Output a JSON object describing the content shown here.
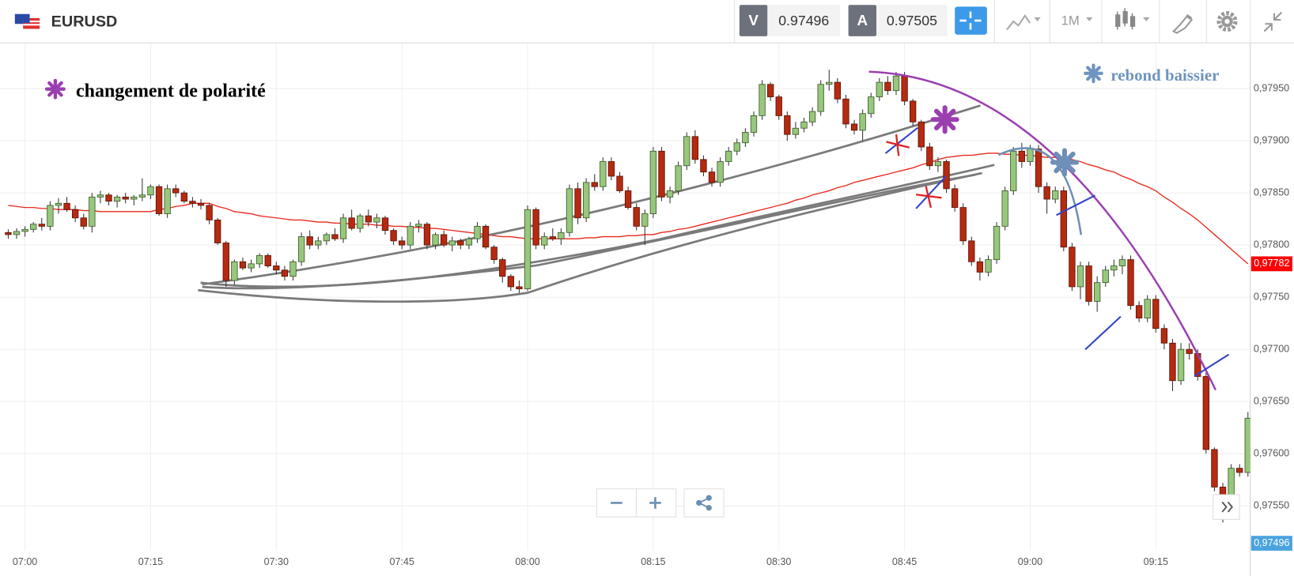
{
  "toolbar": {
    "symbol": "EURUSD",
    "sell_label": "V",
    "sell_price": 0.97496,
    "buy_label": "A",
    "buy_price": 0.97505,
    "timeframe": "1M"
  },
  "chart_data": {
    "type": "candlestick",
    "categories": [
      null,
      null,
      "07:00",
      null,
      null,
      null,
      null,
      null,
      null,
      null,
      null,
      null,
      null,
      null,
      null,
      null,
      null,
      "07:15",
      null,
      null,
      null,
      null,
      null,
      null,
      null,
      null,
      null,
      null,
      null,
      null,
      null,
      null,
      "07:30",
      null,
      null,
      null,
      null,
      null,
      null,
      null,
      null,
      null,
      null,
      null,
      null,
      null,
      null,
      "07:45",
      null,
      null,
      null,
      null,
      null,
      null,
      null,
      null,
      null,
      null,
      null,
      null,
      null,
      null,
      "08:00",
      null,
      null,
      null,
      null,
      null,
      null,
      null,
      null,
      null,
      null,
      null,
      null,
      null,
      null,
      "08:15",
      null,
      null,
      null,
      null,
      null,
      null,
      null,
      null,
      null,
      null,
      null,
      null,
      null,
      null,
      "08:30",
      null,
      null,
      null,
      null,
      null,
      null,
      null,
      null,
      null,
      null,
      null,
      null,
      null,
      null,
      "08:45",
      null,
      null,
      null,
      null,
      null,
      null,
      null,
      null,
      null,
      null,
      null,
      null,
      null,
      null,
      "09:00",
      null,
      null,
      null,
      null,
      null,
      null,
      null,
      null,
      null,
      null,
      null,
      null,
      null,
      null,
      "09:15",
      null,
      null,
      null,
      null,
      null,
      null,
      null,
      null,
      null,
      null,
      null
    ],
    "open": [
      0.97812,
      0.9781,
      0.97813,
      0.97815,
      0.9782,
      0.97818,
      0.97838,
      0.9784,
      0.97834,
      0.97826,
      0.97818,
      0.97846,
      0.97848,
      0.97842,
      0.97846,
      0.97844,
      0.97846,
      0.97848,
      0.97856,
      0.9783,
      0.97854,
      0.9785,
      0.97842,
      0.9784,
      0.97838,
      0.97824,
      0.97802,
      0.97766,
      0.97784,
      0.97778,
      0.97782,
      0.9779,
      0.9778,
      0.97776,
      0.9777,
      0.97784,
      0.97808,
      0.978,
      0.97804,
      0.9781,
      0.97806,
      0.97826,
      0.97816,
      0.97828,
      0.97822,
      0.97826,
      0.97814,
      0.97804,
      0.978,
      0.97818,
      0.9782,
      0.978,
      0.9781,
      0.978,
      0.97804,
      0.978,
      0.97806,
      0.97818,
      0.97798,
      0.97786,
      0.9777,
      0.9776,
      0.97758,
      0.97834,
      0.978,
      0.97808,
      0.97806,
      0.97812,
      0.97854,
      0.97826,
      0.9786,
      0.97856,
      0.9788,
      0.97866,
      0.97852,
      0.97836,
      0.97818,
      0.9783,
      0.9789,
      0.97846,
      0.97852,
      0.97876,
      0.97904,
      0.97882,
      0.9787,
      0.9786,
      0.9788,
      0.9789,
      0.97898,
      0.97908,
      0.97924,
      0.97954,
      0.97942,
      0.97924,
      0.97906,
      0.97912,
      0.97918,
      0.97928,
      0.97954,
      0.97956,
      0.9794,
      0.97916,
      0.9791,
      0.97926,
      0.97942,
      0.97956,
      0.97948,
      0.97962,
      0.97938,
      0.97918,
      0.97894,
      0.97876,
      0.9788,
      0.97854,
      0.97836,
      0.97804,
      0.97784,
      0.97774,
      0.97786,
      0.97818,
      0.97852,
      0.9789,
      0.9788,
      0.97892,
      0.97856,
      0.97844,
      0.97852,
      0.97798,
      0.9776,
      0.9778,
      0.97746,
      0.97764,
      0.97776,
      0.9778,
      0.97786,
      0.97742,
      0.9773,
      0.97748,
      0.9772,
      0.97706,
      0.9767,
      0.977,
      0.97696,
      0.97674,
      0.97604,
      0.97568,
      0.97556,
      0.97586,
      0.97582
    ],
    "high": [
      0.97815,
      0.97816,
      0.97818,
      0.97822,
      0.97826,
      0.97842,
      0.97845,
      0.97846,
      0.97838,
      0.9783,
      0.9785,
      0.97852,
      0.9785,
      0.97848,
      0.9785,
      0.97848,
      0.97864,
      0.97858,
      0.97858,
      0.97858,
      0.97858,
      0.97852,
      0.97846,
      0.97844,
      0.9784,
      0.97826,
      0.97804,
      0.97786,
      0.97788,
      0.97786,
      0.97792,
      0.97792,
      0.97784,
      0.9778,
      0.97786,
      0.97812,
      0.97814,
      0.97808,
      0.97812,
      0.97816,
      0.9783,
      0.97834,
      0.9783,
      0.97834,
      0.9783,
      0.97828,
      0.97816,
      0.97808,
      0.97822,
      0.97824,
      0.97822,
      0.97812,
      0.97814,
      0.97808,
      0.97806,
      0.97808,
      0.97822,
      0.9782,
      0.978,
      0.97788,
      0.97772,
      0.97766,
      0.97838,
      0.97836,
      0.97812,
      0.97816,
      0.97816,
      0.97858,
      0.9786,
      0.97864,
      0.97868,
      0.97884,
      0.97884,
      0.9787,
      0.97856,
      0.9784,
      0.97834,
      0.97894,
      0.97894,
      0.97856,
      0.9788,
      0.97908,
      0.9791,
      0.97886,
      0.97874,
      0.97884,
      0.97894,
      0.97902,
      0.97912,
      0.97928,
      0.97958,
      0.97956,
      0.97944,
      0.97928,
      0.97918,
      0.97922,
      0.97932,
      0.97958,
      0.97968,
      0.9796,
      0.97944,
      0.9792,
      0.9793,
      0.97946,
      0.9796,
      0.97962,
      0.97966,
      0.97966,
      0.9794,
      0.9792,
      0.97898,
      0.97884,
      0.97882,
      0.97858,
      0.9784,
      0.97808,
      0.97788,
      0.9779,
      0.97822,
      0.97856,
      0.97894,
      0.97898,
      0.97896,
      0.97896,
      0.9786,
      0.97856,
      0.97856,
      0.97802,
      0.97784,
      0.97784,
      0.9777,
      0.9778,
      0.97786,
      0.9779,
      0.9779,
      0.97746,
      0.97752,
      0.97752,
      0.97724,
      0.9771,
      0.97706,
      0.97706,
      0.977,
      0.97678,
      0.97606,
      0.97572,
      0.9759,
      0.9759,
      0.9764
    ],
    "low": [
      0.97806,
      0.97806,
      0.97808,
      0.97812,
      0.97814,
      0.97814,
      0.9783,
      0.97832,
      0.97822,
      0.97815,
      0.97812,
      0.9784,
      0.97838,
      0.97836,
      0.9784,
      0.97838,
      0.97842,
      0.97844,
      0.97828,
      0.97826,
      0.97846,
      0.9784,
      0.97836,
      0.97834,
      0.9782,
      0.978,
      0.9776,
      0.97762,
      0.97776,
      0.97774,
      0.97778,
      0.97778,
      0.97772,
      0.97766,
      0.97766,
      0.9778,
      0.97796,
      0.97796,
      0.978,
      0.97804,
      0.97802,
      0.97814,
      0.97812,
      0.97818,
      0.97816,
      0.9781,
      0.978,
      0.97796,
      0.97796,
      0.97812,
      0.97796,
      0.97796,
      0.97798,
      0.97794,
      0.97796,
      0.97796,
      0.97802,
      0.97796,
      0.97782,
      0.97764,
      0.97756,
      0.97754,
      0.97756,
      0.97796,
      0.97796,
      0.97804,
      0.978,
      0.97808,
      0.9782,
      0.97822,
      0.97852,
      0.97852,
      0.97862,
      0.9785,
      0.97834,
      0.97814,
      0.978,
      0.97826,
      0.97842,
      0.9784,
      0.97848,
      0.97872,
      0.97878,
      0.97866,
      0.97856,
      0.97856,
      0.97876,
      0.97886,
      0.97894,
      0.97904,
      0.9792,
      0.97938,
      0.9792,
      0.979,
      0.97902,
      0.97908,
      0.97914,
      0.97924,
      0.97948,
      0.97936,
      0.97912,
      0.97906,
      0.979,
      0.97922,
      0.97938,
      0.97944,
      0.97944,
      0.97934,
      0.97914,
      0.9789,
      0.97872,
      0.9787,
      0.9785,
      0.97832,
      0.978,
      0.9778,
      0.97766,
      0.9777,
      0.97782,
      0.97814,
      0.97848,
      0.97874,
      0.97876,
      0.9785,
      0.9783,
      0.9784,
      0.97794,
      0.97756,
      0.97748,
      0.97742,
      0.97736,
      0.9776,
      0.9777,
      0.97772,
      0.97738,
      0.97726,
      0.97726,
      0.97716,
      0.977,
      0.9766,
      0.97666,
      0.9769,
      0.9767,
      0.976,
      0.97564,
      0.97534,
      0.97552,
      0.97578,
      0.97578
    ],
    "close": [
      0.9781,
      0.97813,
      0.97815,
      0.9782,
      0.97818,
      0.97838,
      0.9784,
      0.97834,
      0.97826,
      0.97818,
      0.97846,
      0.97848,
      0.97842,
      0.97846,
      0.97844,
      0.97846,
      0.97848,
      0.97856,
      0.9783,
      0.97854,
      0.9785,
      0.97842,
      0.9784,
      0.97838,
      0.97824,
      0.97802,
      0.97766,
      0.97784,
      0.97778,
      0.97782,
      0.9779,
      0.9778,
      0.97776,
      0.9777,
      0.97784,
      0.97808,
      0.978,
      0.97804,
      0.9781,
      0.97806,
      0.97826,
      0.97816,
      0.97828,
      0.97822,
      0.97826,
      0.97814,
      0.97804,
      0.978,
      0.97818,
      0.9782,
      0.978,
      0.9781,
      0.978,
      0.97804,
      0.978,
      0.97806,
      0.97818,
      0.97798,
      0.97786,
      0.9777,
      0.9776,
      0.97758,
      0.97834,
      0.978,
      0.97808,
      0.97806,
      0.97812,
      0.97854,
      0.97826,
      0.9786,
      0.97856,
      0.9788,
      0.97866,
      0.97852,
      0.97836,
      0.97818,
      0.9783,
      0.9789,
      0.97846,
      0.97852,
      0.97876,
      0.97904,
      0.97882,
      0.9787,
      0.9786,
      0.9788,
      0.9789,
      0.97898,
      0.97908,
      0.97924,
      0.97954,
      0.97942,
      0.97924,
      0.97906,
      0.97912,
      0.97918,
      0.97928,
      0.97954,
      0.97956,
      0.9794,
      0.97916,
      0.9791,
      0.97926,
      0.97942,
      0.97956,
      0.97948,
      0.97962,
      0.97938,
      0.97918,
      0.97894,
      0.97876,
      0.9788,
      0.97854,
      0.97836,
      0.97804,
      0.97784,
      0.97774,
      0.97786,
      0.97818,
      0.97852,
      0.9789,
      0.9788,
      0.97892,
      0.97856,
      0.97844,
      0.97852,
      0.97798,
      0.9776,
      0.9778,
      0.97746,
      0.97764,
      0.97776,
      0.9778,
      0.97786,
      0.97742,
      0.9773,
      0.97748,
      0.9772,
      0.97706,
      0.9767,
      0.977,
      0.97696,
      0.97674,
      0.97604,
      0.97568,
      0.97556,
      0.97586,
      0.97582,
      0.97634
    ],
    "up_color": "#97c77c",
    "down_color": "#b52a10",
    "ylim": [
      0.97507,
      0.97993
    ],
    "yticks": [
      {
        "value": 0.9755,
        "label": "0,97550"
      },
      {
        "value": 0.976,
        "label": "0,97600"
      },
      {
        "value": 0.9765,
        "label": "0,97650"
      },
      {
        "value": 0.977,
        "label": "0,97700"
      },
      {
        "value": 0.9775,
        "label": "0,97750"
      },
      {
        "value": 0.978,
        "label": "0,97800"
      },
      {
        "value": 0.9785,
        "label": "0,97850"
      },
      {
        "value": 0.979,
        "label": "0,97900"
      },
      {
        "value": 0.9795,
        "label": "0,97950"
      }
    ],
    "grid": true,
    "moving_average": {
      "color": "#e8281e",
      "values": [
        0.97838,
        0.97837,
        0.97836,
        0.97836,
        0.97835,
        0.97835,
        0.97834,
        0.97834,
        0.97834,
        0.97833,
        0.97833,
        0.97832,
        0.97832,
        0.97832,
        0.97832,
        0.97832,
        0.97832,
        0.97832,
        0.97834,
        0.97835,
        0.97837,
        0.97838,
        0.9784,
        0.9784,
        0.9784,
        0.97837,
        0.97835,
        0.97832,
        0.97831,
        0.9783,
        0.97828,
        0.97827,
        0.97826,
        0.97825,
        0.97824,
        0.97824,
        0.97823,
        0.97822,
        0.97822,
        0.97821,
        0.97821,
        0.9782,
        0.9782,
        0.9782,
        0.97819,
        0.97819,
        0.97818,
        0.97818,
        0.97817,
        0.97817,
        0.97816,
        0.97816,
        0.97815,
        0.97814,
        0.97813,
        0.97812,
        0.97811,
        0.9781,
        0.97809,
        0.97808,
        0.97808,
        0.97807,
        0.97806,
        0.97806,
        0.97806,
        0.97806,
        0.97806,
        0.97806,
        0.97806,
        0.97807,
        0.97807,
        0.97808,
        0.97808,
        0.97808,
        0.97809,
        0.97809,
        0.9781,
        0.9781,
        0.97812,
        0.97813,
        0.97815,
        0.97816,
        0.97818,
        0.9782,
        0.97822,
        0.97824,
        0.97826,
        0.97828,
        0.9783,
        0.97832,
        0.97834,
        0.97836,
        0.97838,
        0.9784,
        0.97843,
        0.97845,
        0.97848,
        0.9785,
        0.97852,
        0.97855,
        0.97857,
        0.9786,
        0.97862,
        0.97864,
        0.97866,
        0.97868,
        0.9787,
        0.97872,
        0.97874,
        0.97877,
        0.97879,
        0.97882,
        0.97884,
        0.97885,
        0.97886,
        0.97886,
        0.97887,
        0.97888,
        0.97888,
        0.97887,
        0.97887,
        0.97886,
        0.97886,
        0.97885,
        0.97884,
        0.97884,
        0.97883,
        0.97882,
        0.9788,
        0.97877,
        0.97875,
        0.97872,
        0.9787,
        0.97866,
        0.97863,
        0.97859,
        0.97856,
        0.97852,
        0.97846,
        0.97841,
        0.97835,
        0.9783,
        0.97824,
        0.97817,
        0.9781,
        0.97803,
        0.97796,
        0.97789,
        0.97782
      ]
    },
    "price_markers": [
      {
        "value": 0.97782,
        "label": "0,97782",
        "color": "#ff0000"
      },
      {
        "value": 0.97496,
        "label": "0,97496",
        "color": "#4aa3df"
      }
    ],
    "annotations": [
      {
        "text": "changement de polarité",
        "color": "#000000"
      },
      {
        "text": "rebond baissier",
        "color": "#6f94c0"
      }
    ]
  }
}
